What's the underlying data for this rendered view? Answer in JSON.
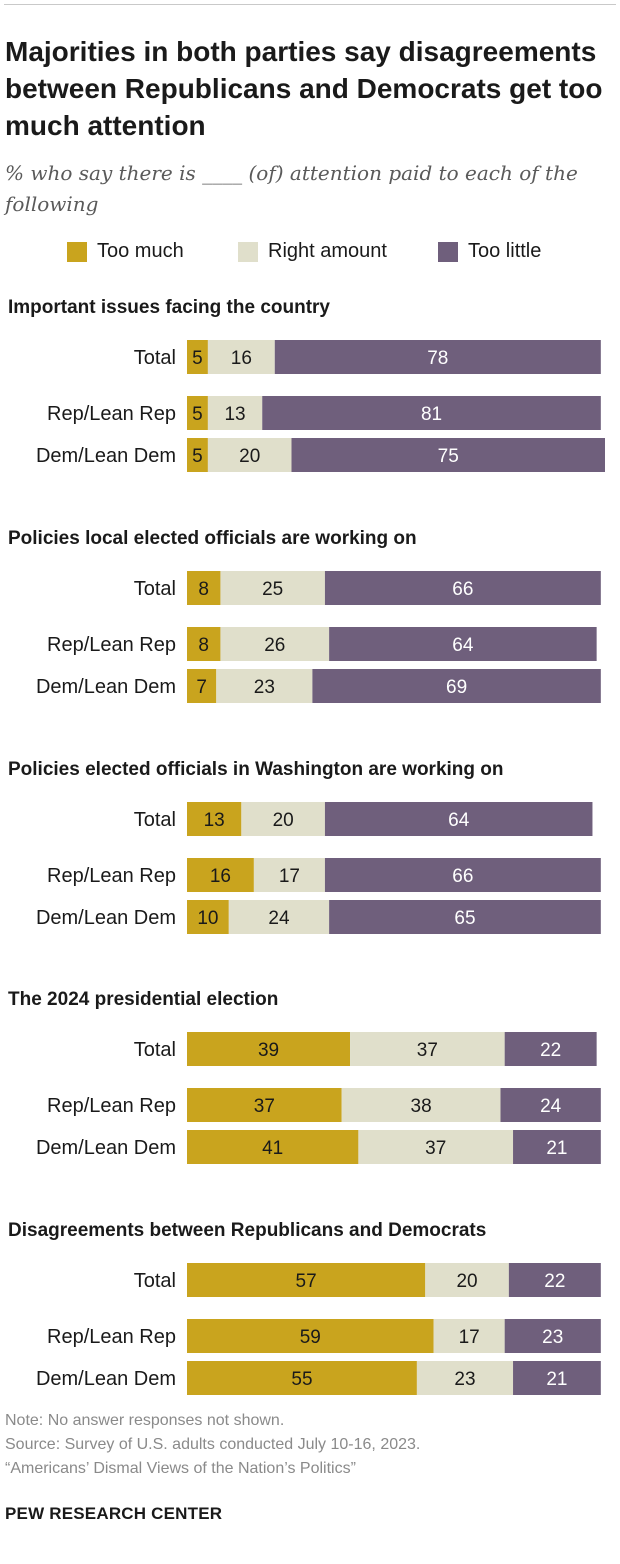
{
  "title": "Majorities in both parties say disagreements between Republicans and Democrats get too much attention",
  "subtitle": "% who say there is ____ (of) attention paid to each of the following",
  "legend": [
    {
      "label": "Too much",
      "color": "#c9a41e"
    },
    {
      "label": "Right amount",
      "color": "#e0dfcb"
    },
    {
      "label": "Too little",
      "color": "#6f5f7c"
    }
  ],
  "chart_data": {
    "type": "bar",
    "orientation": "horizontal",
    "stacked": true,
    "series_names": [
      "Too much",
      "Right amount",
      "Too little"
    ],
    "series_colors": [
      "#c9a41e",
      "#e0dfcb",
      "#6f5f7c"
    ],
    "label_colors": [
      "#1a1a1a",
      "#1a1a1a",
      "#ffffff"
    ],
    "panels": [
      {
        "title": "Important issues facing the country",
        "rows": [
          {
            "label": "Total",
            "values": [
              5,
              16,
              78
            ]
          },
          {
            "label": "Rep/Lean Rep",
            "values": [
              5,
              13,
              81
            ]
          },
          {
            "label": "Dem/Lean Dem",
            "values": [
              5,
              20,
              75
            ]
          }
        ]
      },
      {
        "title": "Policies local elected officials are working on",
        "rows": [
          {
            "label": "Total",
            "values": [
              8,
              25,
              66
            ]
          },
          {
            "label": "Rep/Lean Rep",
            "values": [
              8,
              26,
              64
            ]
          },
          {
            "label": "Dem/Lean Dem",
            "values": [
              7,
              23,
              69
            ]
          }
        ]
      },
      {
        "title": "Policies elected officials in Washington are working on",
        "rows": [
          {
            "label": "Total",
            "values": [
              13,
              20,
              64
            ]
          },
          {
            "label": "Rep/Lean Rep",
            "values": [
              16,
              17,
              66
            ]
          },
          {
            "label": "Dem/Lean Dem",
            "values": [
              10,
              24,
              65
            ]
          }
        ]
      },
      {
        "title": "The 2024 presidential election",
        "rows": [
          {
            "label": "Total",
            "values": [
              39,
              37,
              22
            ]
          },
          {
            "label": "Rep/Lean Rep",
            "values": [
              37,
              38,
              24
            ]
          },
          {
            "label": "Dem/Lean Dem",
            "values": [
              41,
              37,
              21
            ]
          }
        ]
      },
      {
        "title": "Disagreements between Republicans and Democrats",
        "rows": [
          {
            "label": "Total",
            "values": [
              57,
              20,
              22
            ]
          },
          {
            "label": "Rep/Lean Rep",
            "values": [
              59,
              17,
              23
            ]
          },
          {
            "label": "Dem/Lean Dem",
            "values": [
              55,
              23,
              21
            ]
          }
        ]
      }
    ]
  },
  "notes": {
    "note": "Note: No answer responses not shown.",
    "source": "Source: Survey of U.S. adults conducted July 10-16, 2023.",
    "report": "“Americans’ Dismal Views of the Nation’s Politics”"
  },
  "footer": "PEW RESEARCH CENTER"
}
